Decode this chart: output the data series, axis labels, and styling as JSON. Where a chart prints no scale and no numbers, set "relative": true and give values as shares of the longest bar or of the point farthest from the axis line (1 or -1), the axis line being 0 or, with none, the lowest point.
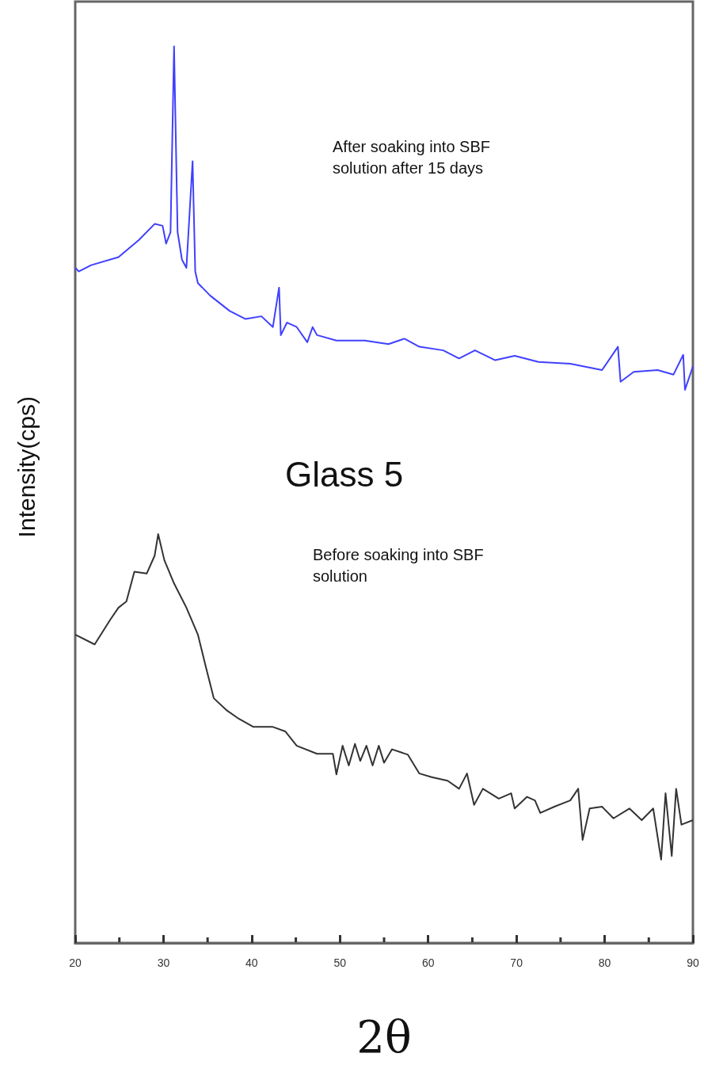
{
  "chart_data": {
    "type": "line",
    "relative": true,
    "xlabel": "2θ",
    "ylabel": "Intensity(cps)",
    "xlim": [
      20,
      90
    ],
    "xticks": [
      20,
      30,
      40,
      50,
      60,
      70,
      80,
      90
    ],
    "grid": false,
    "marker": "none",
    "line_style": "solid",
    "annotations": [
      "After soaking into SBF\nsolution after 15 days",
      "Glass 5",
      "Before soaking into SBF\nsolution"
    ],
    "series": [
      {
        "color": "#4040ff",
        "x": [
          20,
          20.4,
          21.8,
          24.9,
          27.2,
          29,
          29.9,
          30.3,
          30.8,
          31.2,
          31.6,
          32.1,
          32.6,
          33.3,
          33.6,
          33.9,
          35.3,
          37.5,
          39.3,
          41.1,
          42.4,
          43.1,
          43.3,
          44,
          45.1,
          46.3,
          46.9,
          47.4,
          49.6,
          52.8,
          55.5,
          57.3,
          59,
          61.7,
          63.5,
          65.3,
          67.6,
          69.8,
          72.5,
          76.1,
          79.7,
          81.5,
          81.8,
          83.3,
          86,
          87.8,
          88.9,
          89.1,
          90
        ],
        "values": [
          0.753,
          0.749,
          0.756,
          0.765,
          0.784,
          0.802,
          0.8,
          0.78,
          0.793,
          1.0,
          0.793,
          0.762,
          0.753,
          0.872,
          0.749,
          0.736,
          0.722,
          0.705,
          0.696,
          0.699,
          0.687,
          0.731,
          0.678,
          0.692,
          0.687,
          0.67,
          0.687,
          0.678,
          0.672,
          0.672,
          0.668,
          0.674,
          0.665,
          0.661,
          0.652,
          0.661,
          0.65,
          0.655,
          0.648,
          0.646,
          0.639,
          0.665,
          0.626,
          0.637,
          0.639,
          0.634,
          0.656,
          0.617,
          0.643
        ]
      },
      {
        "color": "#333333",
        "x": [
          20,
          22.2,
          24,
          24.9,
          25.8,
          26.7,
          28.1,
          29,
          29.4,
          30.1,
          31.2,
          32.6,
          33.9,
          34.8,
          35.7,
          37.1,
          38.4,
          40.2,
          42.4,
          43.8,
          45.1,
          47.4,
          49.2,
          49.6,
          50.3,
          51,
          51.7,
          52.3,
          53,
          53.7,
          54.4,
          55,
          55.9,
          57.7,
          59,
          60.4,
          62.2,
          63.5,
          64.4,
          65.2,
          66.2,
          68,
          69.4,
          69.8,
          71.2,
          72.1,
          72.7,
          74.3,
          76.1,
          77,
          77.5,
          78.3,
          79.7,
          81,
          82.8,
          84.2,
          85.5,
          86.4,
          86.9,
          87.6,
          88.1,
          88.7,
          90
        ],
        "values": [
          0.344,
          0.333,
          0.361,
          0.374,
          0.381,
          0.414,
          0.412,
          0.432,
          0.456,
          0.427,
          0.401,
          0.374,
          0.344,
          0.308,
          0.273,
          0.26,
          0.251,
          0.241,
          0.241,
          0.236,
          0.22,
          0.211,
          0.211,
          0.188,
          0.22,
          0.198,
          0.222,
          0.203,
          0.22,
          0.198,
          0.22,
          0.201,
          0.216,
          0.21,
          0.189,
          0.185,
          0.181,
          0.172,
          0.189,
          0.154,
          0.172,
          0.161,
          0.167,
          0.15,
          0.163,
          0.159,
          0.145,
          0.152,
          0.159,
          0.172,
          0.115,
          0.15,
          0.152,
          0.139,
          0.15,
          0.137,
          0.15,
          0.093,
          0.167,
          0.097,
          0.172,
          0.132,
          0.137
        ]
      }
    ]
  }
}
